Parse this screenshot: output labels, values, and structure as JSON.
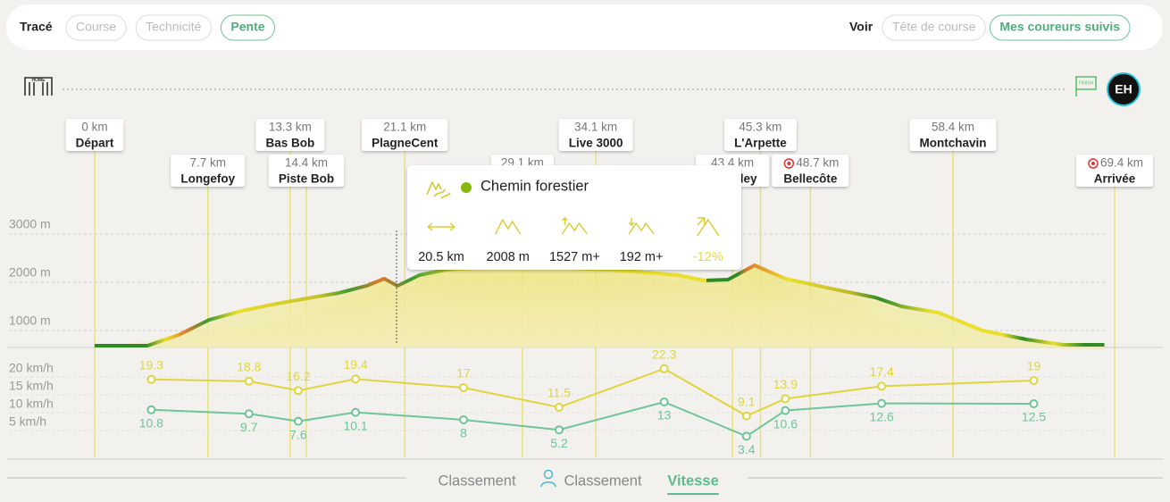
{
  "header": {
    "trace_label": "Tracé",
    "trace_options": [
      "Course",
      "Technicité",
      "Pente"
    ],
    "trace_active": 2,
    "view_label": "Voir",
    "view_options": [
      "Tête de course",
      "Mes coureurs suivis"
    ],
    "view_active": 1
  },
  "track": {
    "start_icon": "HOME",
    "finish_icon": "FINISH",
    "avatar": "EH"
  },
  "checkpoints": [
    {
      "km": 0,
      "km_label": "0 km",
      "name": "Départ"
    },
    {
      "km": 7.7,
      "km_label": "7.7 km",
      "name": "Longefoy"
    },
    {
      "km": 13.3,
      "km_label": "13.3 km",
      "name": "Bas Bob"
    },
    {
      "km": 14.4,
      "km_label": "14.4 km",
      "name": "Piste Bob"
    },
    {
      "km": 21.1,
      "km_label": "21.1 km",
      "name": "PlagneCent"
    },
    {
      "km": 29.1,
      "km_label": "29.1 km"
    },
    {
      "km": 34.1,
      "km_label": "34.1 km",
      "name": "Live 3000"
    },
    {
      "km": 43.4,
      "km_label": "43.4 km",
      "name": "ley"
    },
    {
      "km": 45.3,
      "km_label": "45.3 km",
      "name": "L'Arpette"
    },
    {
      "km": 48.7,
      "km_label": "48.7 km",
      "name": "Bellecôte",
      "aid_station": true
    },
    {
      "km": 58.4,
      "km_label": "58.4 km",
      "name": "Montchavin"
    },
    {
      "km": 69.4,
      "km_label": "69.4 km",
      "name": "Arrivée",
      "aid_station": true
    }
  ],
  "tooltip": {
    "title": "Chemin forestier",
    "stats": [
      "20.5 km",
      "2008 m",
      "1527 m+",
      "192 m+",
      "-12%"
    ]
  },
  "chart_data": [
    {
      "type": "area",
      "x": [
        0,
        3.6,
        5.7,
        7.8,
        10.0,
        12.4,
        14.8,
        16.6,
        18.5,
        19.7,
        20.6,
        22.1,
        23.9,
        27.6,
        32.4,
        36.1,
        39.7,
        41.5,
        43.1,
        44.9,
        47.0,
        50.1,
        53.1,
        54.9,
        57.4,
        60.4,
        63.4,
        65.9,
        68.7
      ],
      "series": [
        {
          "color": "#e6dc3a",
          "values": [
            685,
            685,
            907,
            1222,
            1407,
            1556,
            1685,
            1778,
            1926,
            2074,
            1926,
            2148,
            2259,
            2333,
            2296,
            2241,
            2148,
            2037,
            2056,
            2352,
            2074,
            1870,
            1685,
            1500,
            1370,
            1000,
            815,
            704,
            704
          ]
        }
      ],
      "xlim": [
        0,
        69.4
      ],
      "ylim": [
        650,
        3000
      ],
      "yticks": [
        {
          "value": 1000,
          "label": "1000 m"
        },
        {
          "value": 2000,
          "label": "2000 m"
        },
        {
          "value": 3000,
          "label": "3000 m"
        }
      ],
      "grid": true
    },
    {
      "type": "line",
      "x": [
        3.85,
        10.5,
        13.85,
        17.75,
        25.1,
        31.6,
        38.75,
        44.35,
        47.0,
        53.55,
        63.9
      ],
      "series": [
        {
          "color": "#e0d53e",
          "values": [
            19.3,
            18.8,
            16.2,
            19.4,
            17,
            11.5,
            22.3,
            9.1,
            13.9,
            17.4,
            19
          ]
        },
        {
          "color": "#6ec597",
          "values": [
            10.8,
            9.7,
            7.6,
            10.1,
            8,
            5.2,
            13,
            3.4,
            10.6,
            12.6,
            12.5
          ]
        }
      ],
      "xlim": [
        0,
        69.4
      ],
      "ylim": [
        0,
        25
      ],
      "yticks": [
        {
          "value": 5,
          "label": "5 km/h"
        },
        {
          "value": 10,
          "label": "10 km/h"
        },
        {
          "value": 15,
          "label": "15 km/h"
        },
        {
          "value": 20,
          "label": "20 km/h"
        }
      ],
      "grid": true
    }
  ],
  "tabs": {
    "items": [
      "Classement",
      "Classement",
      "Vitesse"
    ],
    "active": 2
  }
}
